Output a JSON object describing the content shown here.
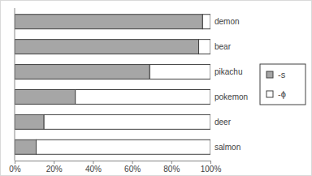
{
  "chart_data": {
    "type": "bar",
    "orientation": "horizontal",
    "stacked": true,
    "grid": false,
    "legend": "right",
    "categories": [
      "demon",
      "bear",
      "pikachu",
      "pokemon",
      "deer",
      "salmon"
    ],
    "series": [
      {
        "name": "-s",
        "color": "#a6a6a6",
        "values": [
          96,
          94,
          69,
          31,
          15,
          11
        ]
      },
      {
        "name": "-ϕ",
        "color": "#ffffff",
        "values": [
          4,
          6,
          31,
          69,
          85,
          89
        ]
      }
    ],
    "xlim": [
      0,
      100
    ],
    "xticks": [
      {
        "value": 0,
        "label": "0%"
      },
      {
        "value": 20,
        "label": "20%"
      },
      {
        "value": 40,
        "label": "40%"
      },
      {
        "value": 60,
        "label": "60%"
      },
      {
        "value": 80,
        "label": "80%"
      },
      {
        "value": 100,
        "label": "100%"
      }
    ]
  }
}
